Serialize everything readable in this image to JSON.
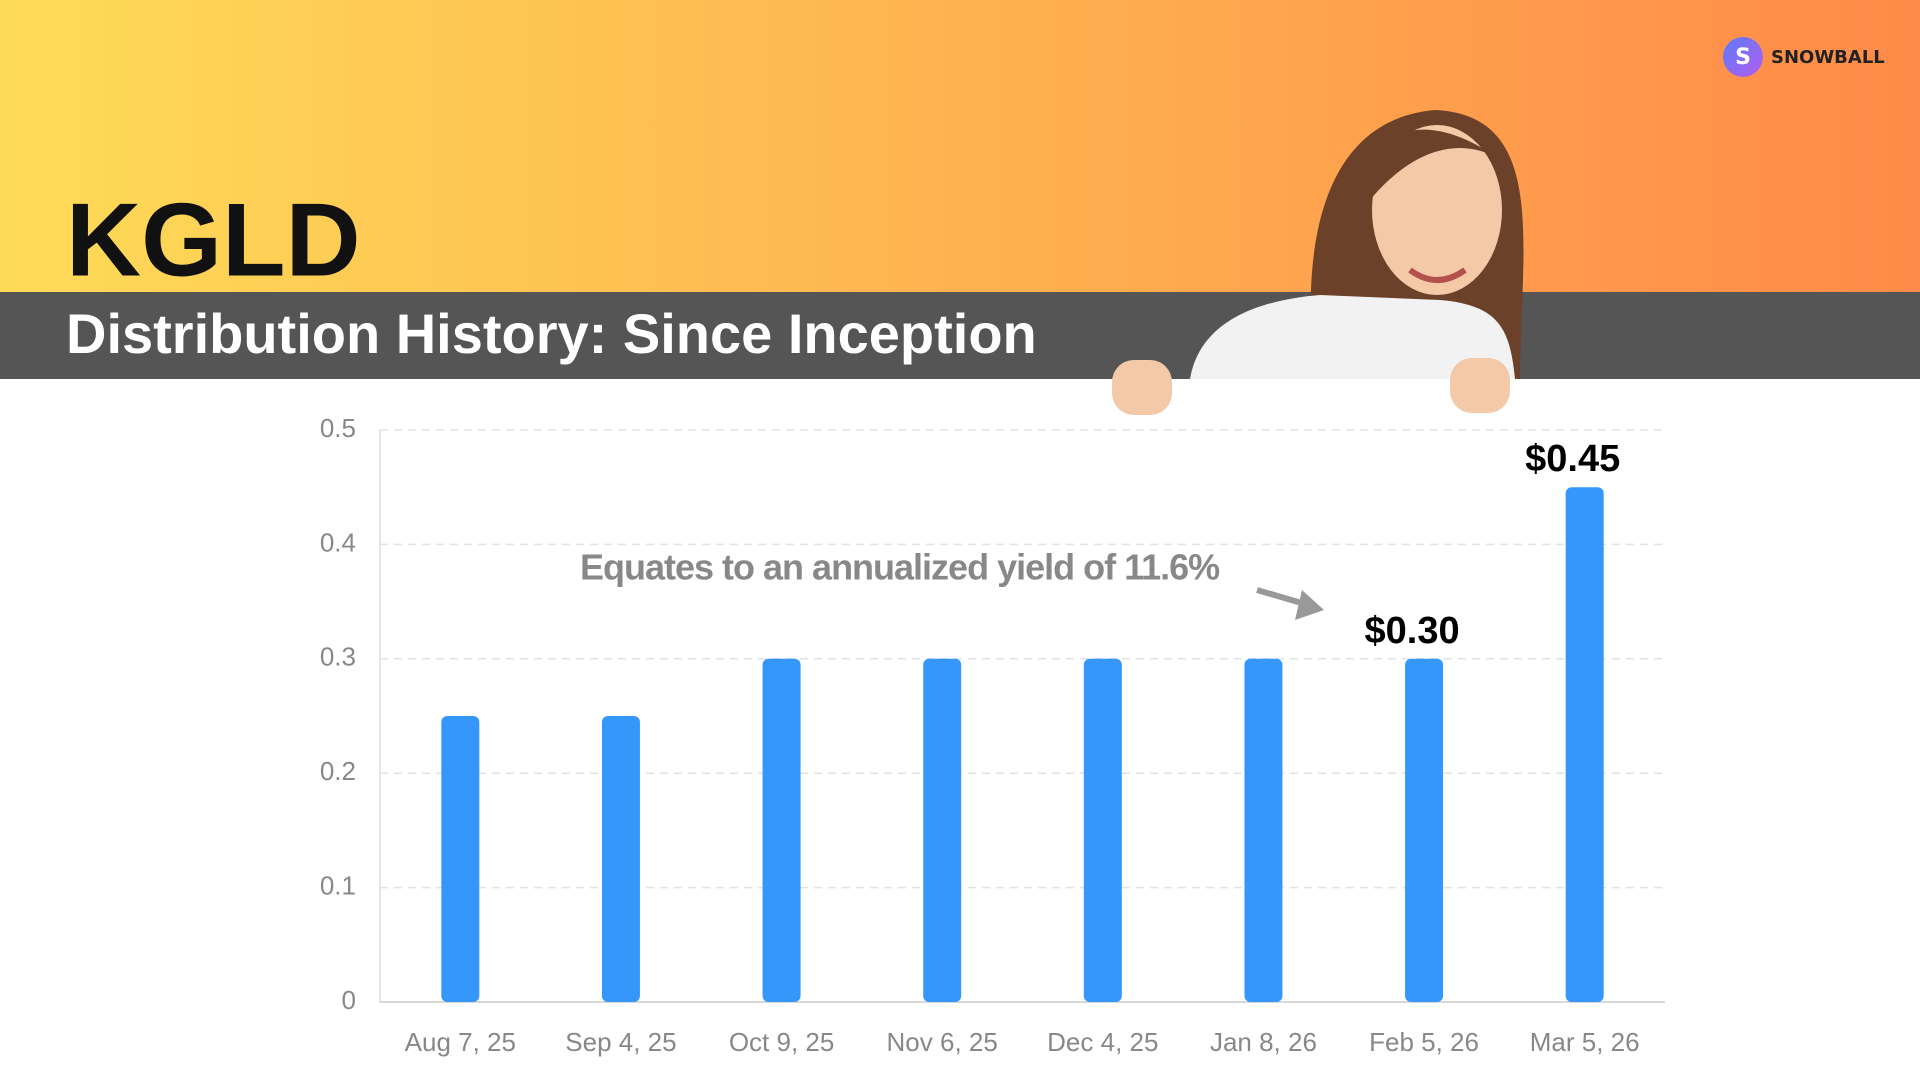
{
  "header": {
    "title": "KGLD",
    "subtitle": "Distribution History: Since Inception",
    "logo_letter": "S",
    "logo_text": "SNOWBALL"
  },
  "chart_data": {
    "type": "bar",
    "categories": [
      "Aug 7, 25",
      "Sep 4, 25",
      "Oct 9, 25",
      "Nov 6, 25",
      "Dec 4, 25",
      "Jan 8, 26",
      "Feb 5, 26",
      "Mar 5, 26"
    ],
    "values": [
      0.25,
      0.25,
      0.3,
      0.3,
      0.3,
      0.3,
      0.3,
      0.45
    ],
    "value_labels": [
      null,
      null,
      null,
      null,
      null,
      null,
      "$0.30",
      "$0.45"
    ],
    "color": "#3597fa",
    "ylim": [
      0,
      0.5
    ],
    "yticks": [
      0,
      0.1,
      0.2,
      0.3,
      0.4,
      0.5
    ],
    "grid": true,
    "annotation": "Equates to an annualized yield of 11.6%"
  }
}
